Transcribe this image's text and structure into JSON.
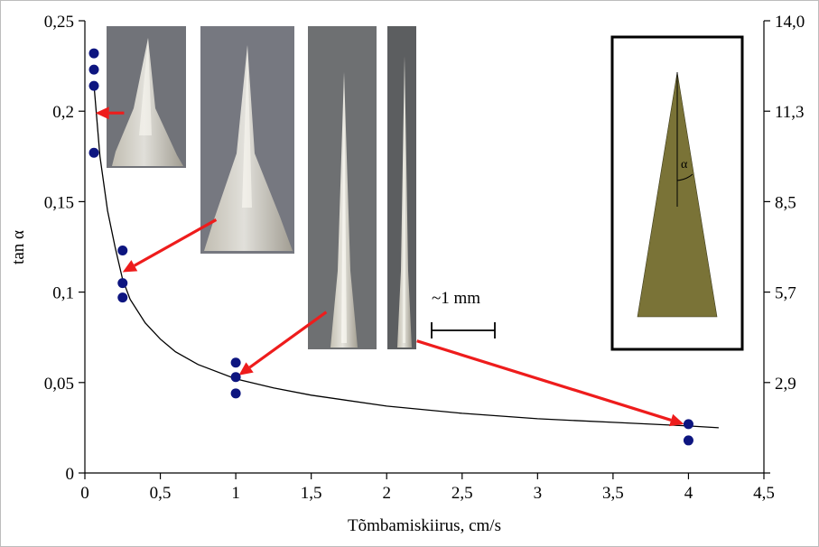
{
  "chart_data": {
    "type": "scatter",
    "xlabel": "Tõmbamiskiirus, cm/s",
    "ylabel": "tan α",
    "xlim": [
      0,
      4.5
    ],
    "ylim": [
      0,
      0.25
    ],
    "x_ticks": [
      0,
      0.5,
      1,
      1.5,
      2,
      2.5,
      3,
      3.5,
      4,
      4.5
    ],
    "x_tick_labels": [
      "0",
      "0,5",
      "1",
      "1,5",
      "2",
      "2,5",
      "3",
      "3,5",
      "4",
      "4,5"
    ],
    "y_ticks": [
      0,
      0.05,
      0.1,
      0.15,
      0.2,
      0.25
    ],
    "y_tick_labels": [
      "0",
      "0,05",
      "0,1",
      "0,15",
      "0,2",
      "0,25"
    ],
    "y2_ticks": [
      0,
      0.05,
      0.1,
      0.15,
      0.2,
      0.25
    ],
    "y2_tick_labels": [
      "",
      "2,9",
      "5,7",
      "8,5",
      "11,3",
      "14,0"
    ],
    "points": [
      {
        "x": 0.06,
        "y": 0.232
      },
      {
        "x": 0.06,
        "y": 0.223
      },
      {
        "x": 0.06,
        "y": 0.214
      },
      {
        "x": 0.06,
        "y": 0.177
      },
      {
        "x": 0.25,
        "y": 0.123
      },
      {
        "x": 0.25,
        "y": 0.105
      },
      {
        "x": 0.25,
        "y": 0.097
      },
      {
        "x": 1.0,
        "y": 0.061
      },
      {
        "x": 1.0,
        "y": 0.053
      },
      {
        "x": 1.0,
        "y": 0.044
      },
      {
        "x": 4.0,
        "y": 0.027
      },
      {
        "x": 4.0,
        "y": 0.018
      }
    ],
    "fit_curve": [
      {
        "x": 0.06,
        "y": 0.215
      },
      {
        "x": 0.1,
        "y": 0.175
      },
      {
        "x": 0.15,
        "y": 0.145
      },
      {
        "x": 0.2,
        "y": 0.125
      },
      {
        "x": 0.25,
        "y": 0.107
      },
      {
        "x": 0.3,
        "y": 0.096
      },
      {
        "x": 0.4,
        "y": 0.083
      },
      {
        "x": 0.5,
        "y": 0.074
      },
      {
        "x": 0.6,
        "y": 0.067
      },
      {
        "x": 0.75,
        "y": 0.06
      },
      {
        "x": 1.0,
        "y": 0.052
      },
      {
        "x": 1.25,
        "y": 0.047
      },
      {
        "x": 1.5,
        "y": 0.043
      },
      {
        "x": 2.0,
        "y": 0.037
      },
      {
        "x": 2.5,
        "y": 0.033
      },
      {
        "x": 3.0,
        "y": 0.03
      },
      {
        "x": 3.5,
        "y": 0.028
      },
      {
        "x": 4.0,
        "y": 0.026
      },
      {
        "x": 4.2,
        "y": 0.025
      }
    ],
    "arrows": [
      {
        "from_x": 0.26,
        "from_y": 0.199,
        "to_x": 0.07,
        "to_y": 0.199
      },
      {
        "from_x": 0.87,
        "from_y": 0.14,
        "to_x": 0.25,
        "to_y": 0.111
      },
      {
        "from_x": 1.6,
        "from_y": 0.089,
        "to_x": 1.02,
        "to_y": 0.054
      },
      {
        "from_x": 2.2,
        "from_y": 0.073,
        "to_x": 3.97,
        "to_y": 0.027
      }
    ],
    "scale_bar_label": "~1 mm",
    "inset_angle_label": "α",
    "colors": {
      "points": "#0d1580",
      "fit": "#000000",
      "arrows": "#ee1c1c",
      "cone_fill": "#7a7337",
      "photo_bg": "#74757a",
      "photo_bg_dark": "#5e6064",
      "photo_tip": "#e8e6dc"
    }
  }
}
